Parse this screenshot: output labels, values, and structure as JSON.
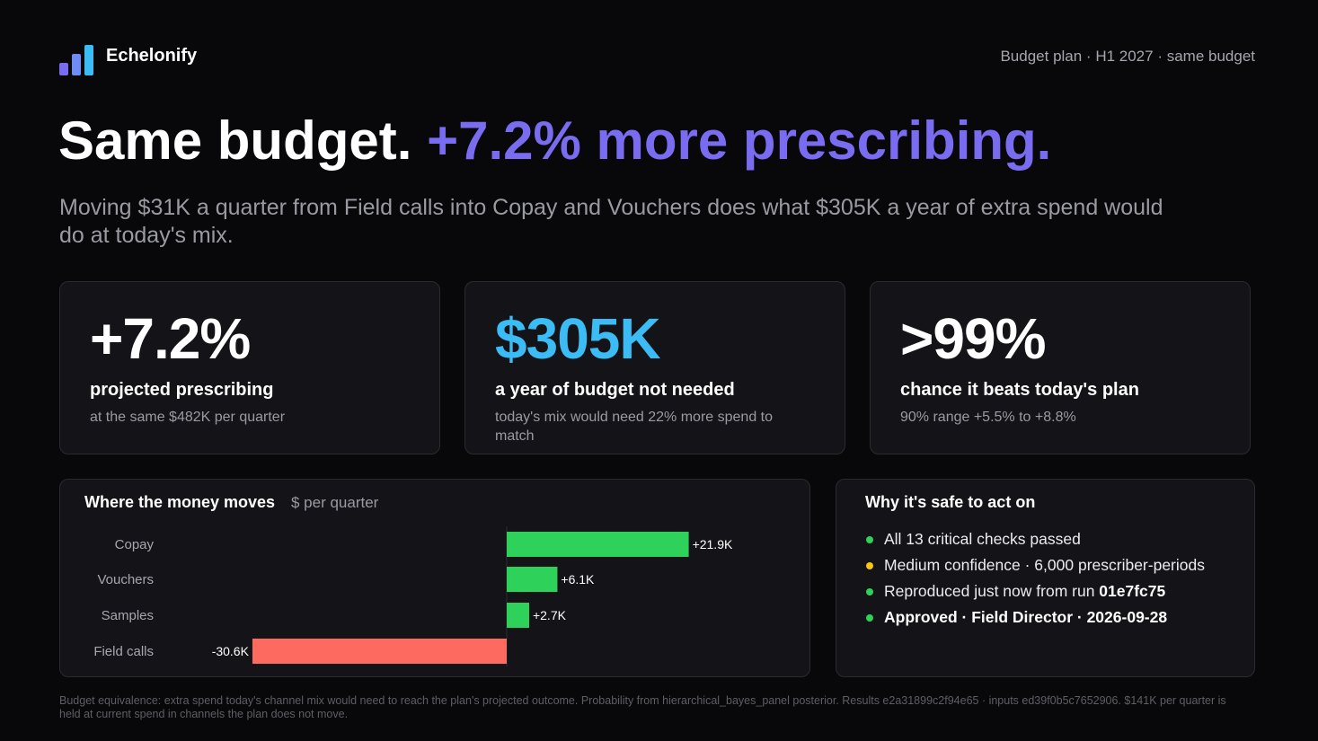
{
  "header": {
    "brand": "Echelonify",
    "context": "Budget plan · H1 2027 · same budget",
    "logo_colors": [
      "#7a6cf0",
      "#6f8cf5",
      "#3bbcf5"
    ]
  },
  "headline": {
    "lead": "Same budget.",
    "accent": "+7.2% more prescribing.",
    "accent_color": "#7a6cf0"
  },
  "subhead": "Moving $31K a quarter from Field calls into Copay and Vouchers does what $305K a year of extra spend would do at today's mix.",
  "kpis": [
    {
      "value": "+7.2%",
      "label": "projected prescribing",
      "note": "at the same $482K per quarter",
      "color": "#ffffff"
    },
    {
      "value": "$305K",
      "label": "a year of budget not needed",
      "note": "today's mix would need 22% more spend to match",
      "color": "#3bbcf5"
    },
    {
      "value": ">99%",
      "label": "chance it beats today's plan",
      "note": "90% range +5.5% to +8.8%",
      "color": "#ffffff"
    }
  ],
  "moves_panel": {
    "title": "Where the money moves",
    "unit": "$ per quarter"
  },
  "chart_data": {
    "type": "bar",
    "orientation": "horizontal",
    "categories": [
      "Copay",
      "Vouchers",
      "Samples",
      "Field calls"
    ],
    "values": [
      21.9,
      6.1,
      2.7,
      -30.6
    ],
    "data_labels": [
      "+21.9K",
      "+6.1K",
      "+2.7K",
      "-30.6K"
    ],
    "unit": "$K per quarter",
    "positive_color": "#2ed15a",
    "negative_color": "#fc6a60"
  },
  "safety_panel": {
    "title": "Why it's safe to act on",
    "items": [
      {
        "text": "All 13 critical checks passed",
        "bold": "",
        "dot": "#2ed15a"
      },
      {
        "text": "Medium confidence · 6,000 prescriber-periods",
        "bold": "",
        "dot": "#f5c518"
      },
      {
        "text": "Reproduced just now from run ",
        "bold": "01e7fc75",
        "dot": "#2ed15a"
      },
      {
        "text": "",
        "bold": "Approved · Field Director · 2026-09-28",
        "dot": "#2ed15a"
      }
    ]
  },
  "footnote": "Budget equivalence: extra spend today's channel mix would need to reach the plan's projected outcome. Probability from hierarchical_bayes_panel posterior. Results e2a31899c2f94e65 · inputs ed39f0b5c7652906. $141K per quarter is held at current spend in channels the plan does not move."
}
